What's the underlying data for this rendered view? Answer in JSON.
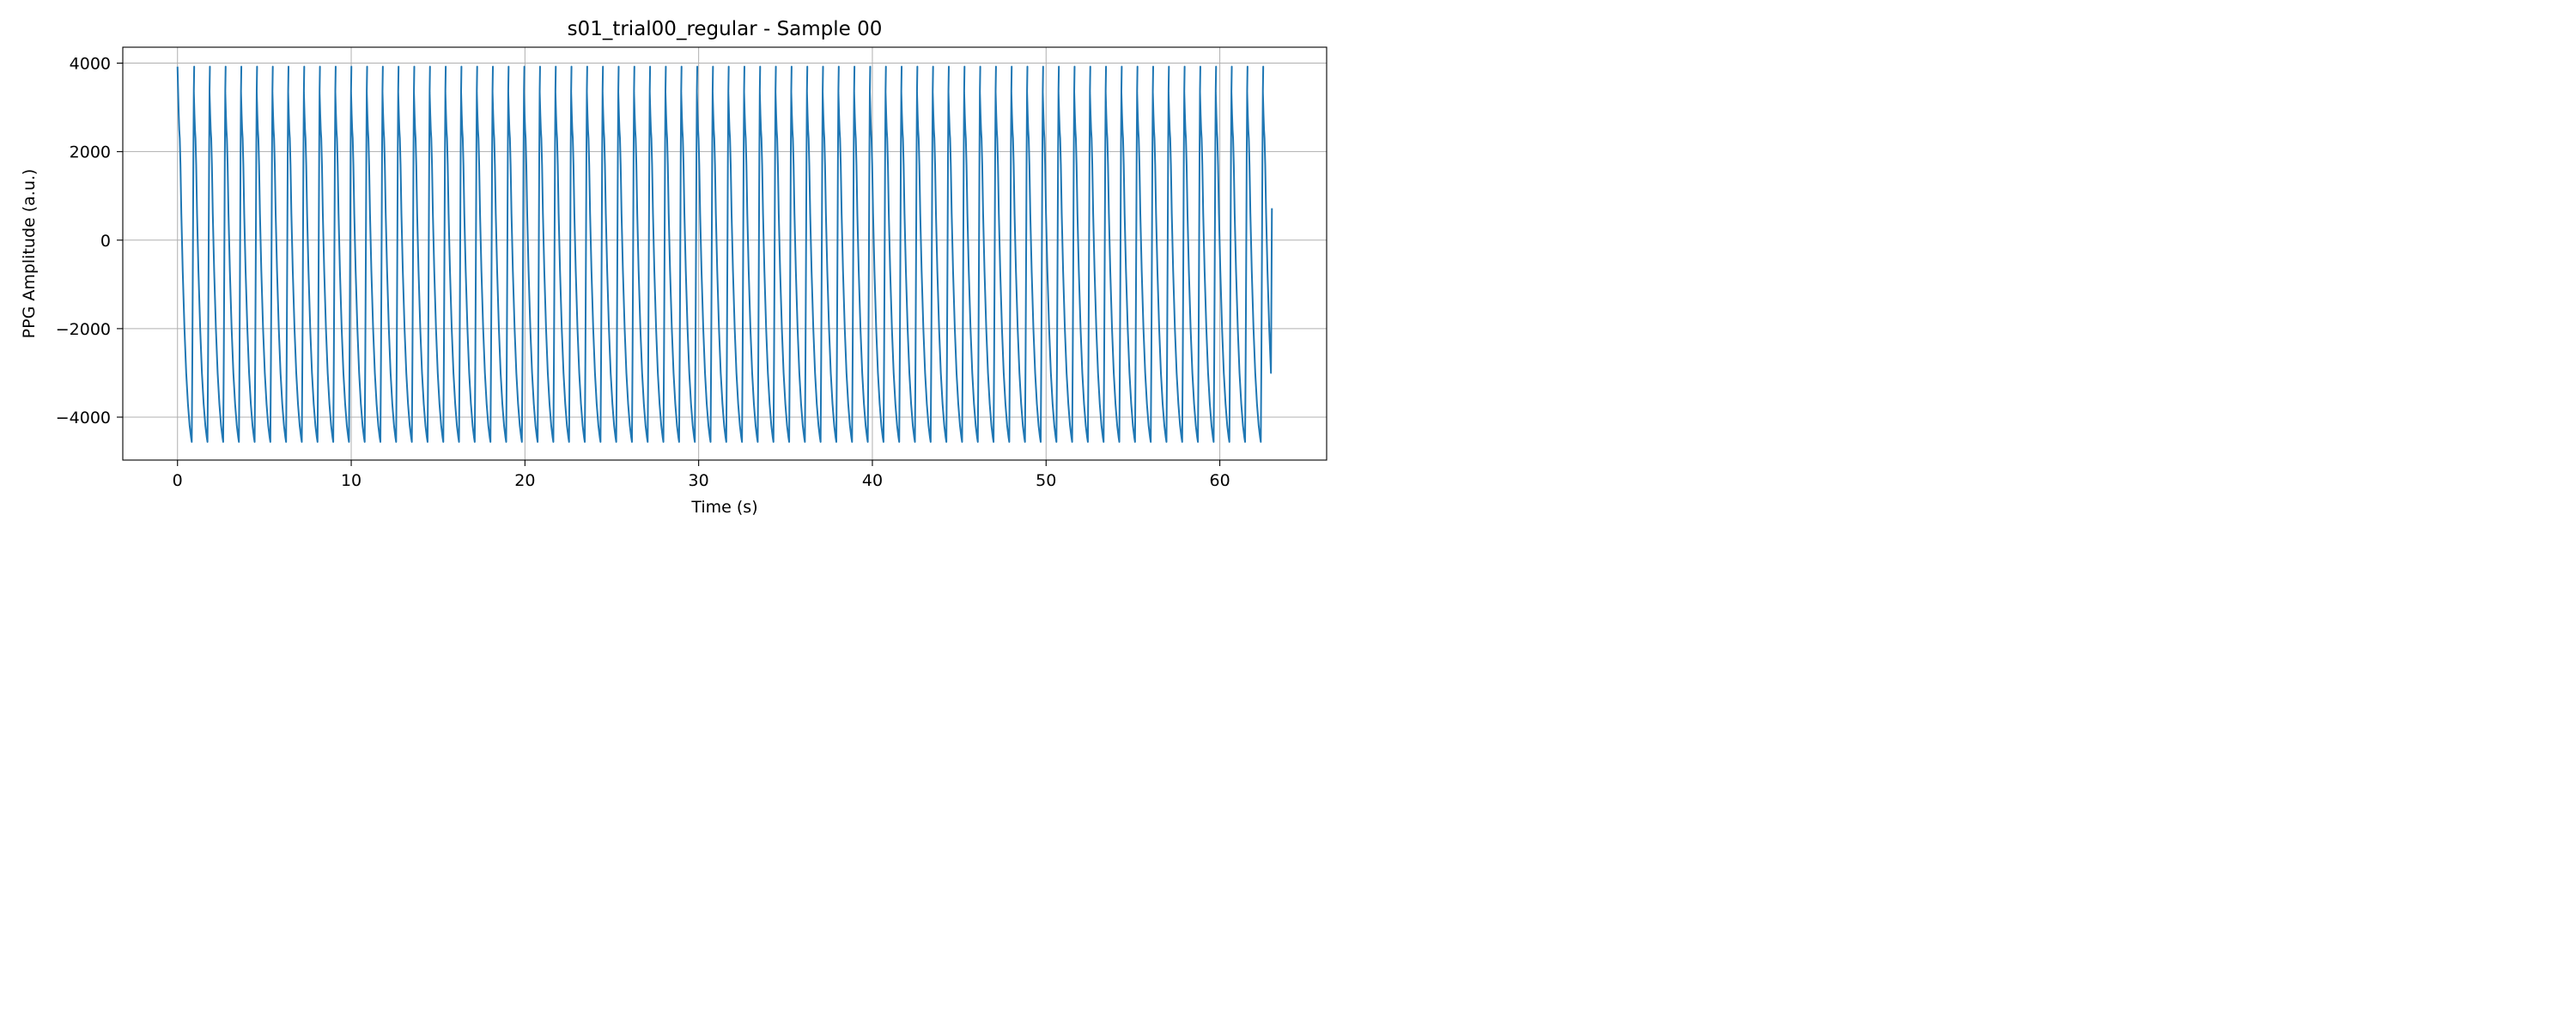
{
  "chart_data": {
    "type": "line",
    "title": "s01_trial00_regular - Sample 00",
    "xlabel": "Time (s)",
    "ylabel": "PPG Amplitude (a.u.)",
    "xlim": [
      -3.15,
      66.15
    ],
    "ylim": [
      -4970,
      4360
    ],
    "xticks": [
      0,
      10,
      20,
      30,
      40,
      50,
      60
    ],
    "xtick_labels": [
      "0",
      "10",
      "20",
      "30",
      "40",
      "50",
      "60"
    ],
    "yticks": [
      -4000,
      -2000,
      0,
      2000,
      4000
    ],
    "ytick_labels": [
      "−4000",
      "−2000",
      "0",
      "2000",
      "4000"
    ],
    "grid": true,
    "line_color": "#1f77b4",
    "series": [
      {
        "beat_period_s": 0.905,
        "duration_s": [
          0,
          63
        ],
        "peak_value": 3920,
        "trough_value": -4560,
        "notch_value": 2450,
        "end_value": 720,
        "template": [
          [
            0.0,
            3920
          ],
          [
            0.035,
            3350
          ],
          [
            0.07,
            2850
          ],
          [
            0.1,
            2500
          ],
          [
            0.13,
            2300
          ],
          [
            0.17,
            1700
          ],
          [
            0.22,
            600
          ],
          [
            0.3,
            -700
          ],
          [
            0.4,
            -2000
          ],
          [
            0.5,
            -3000
          ],
          [
            0.6,
            -3700
          ],
          [
            0.7,
            -4200
          ],
          [
            0.78,
            -4460
          ],
          [
            0.82,
            -4560
          ],
          [
            0.855,
            -2600
          ],
          [
            0.885,
            -400
          ],
          [
            0.915,
            2000
          ],
          [
            0.94,
            3400
          ],
          [
            0.96,
            3920
          ]
        ]
      }
    ]
  }
}
